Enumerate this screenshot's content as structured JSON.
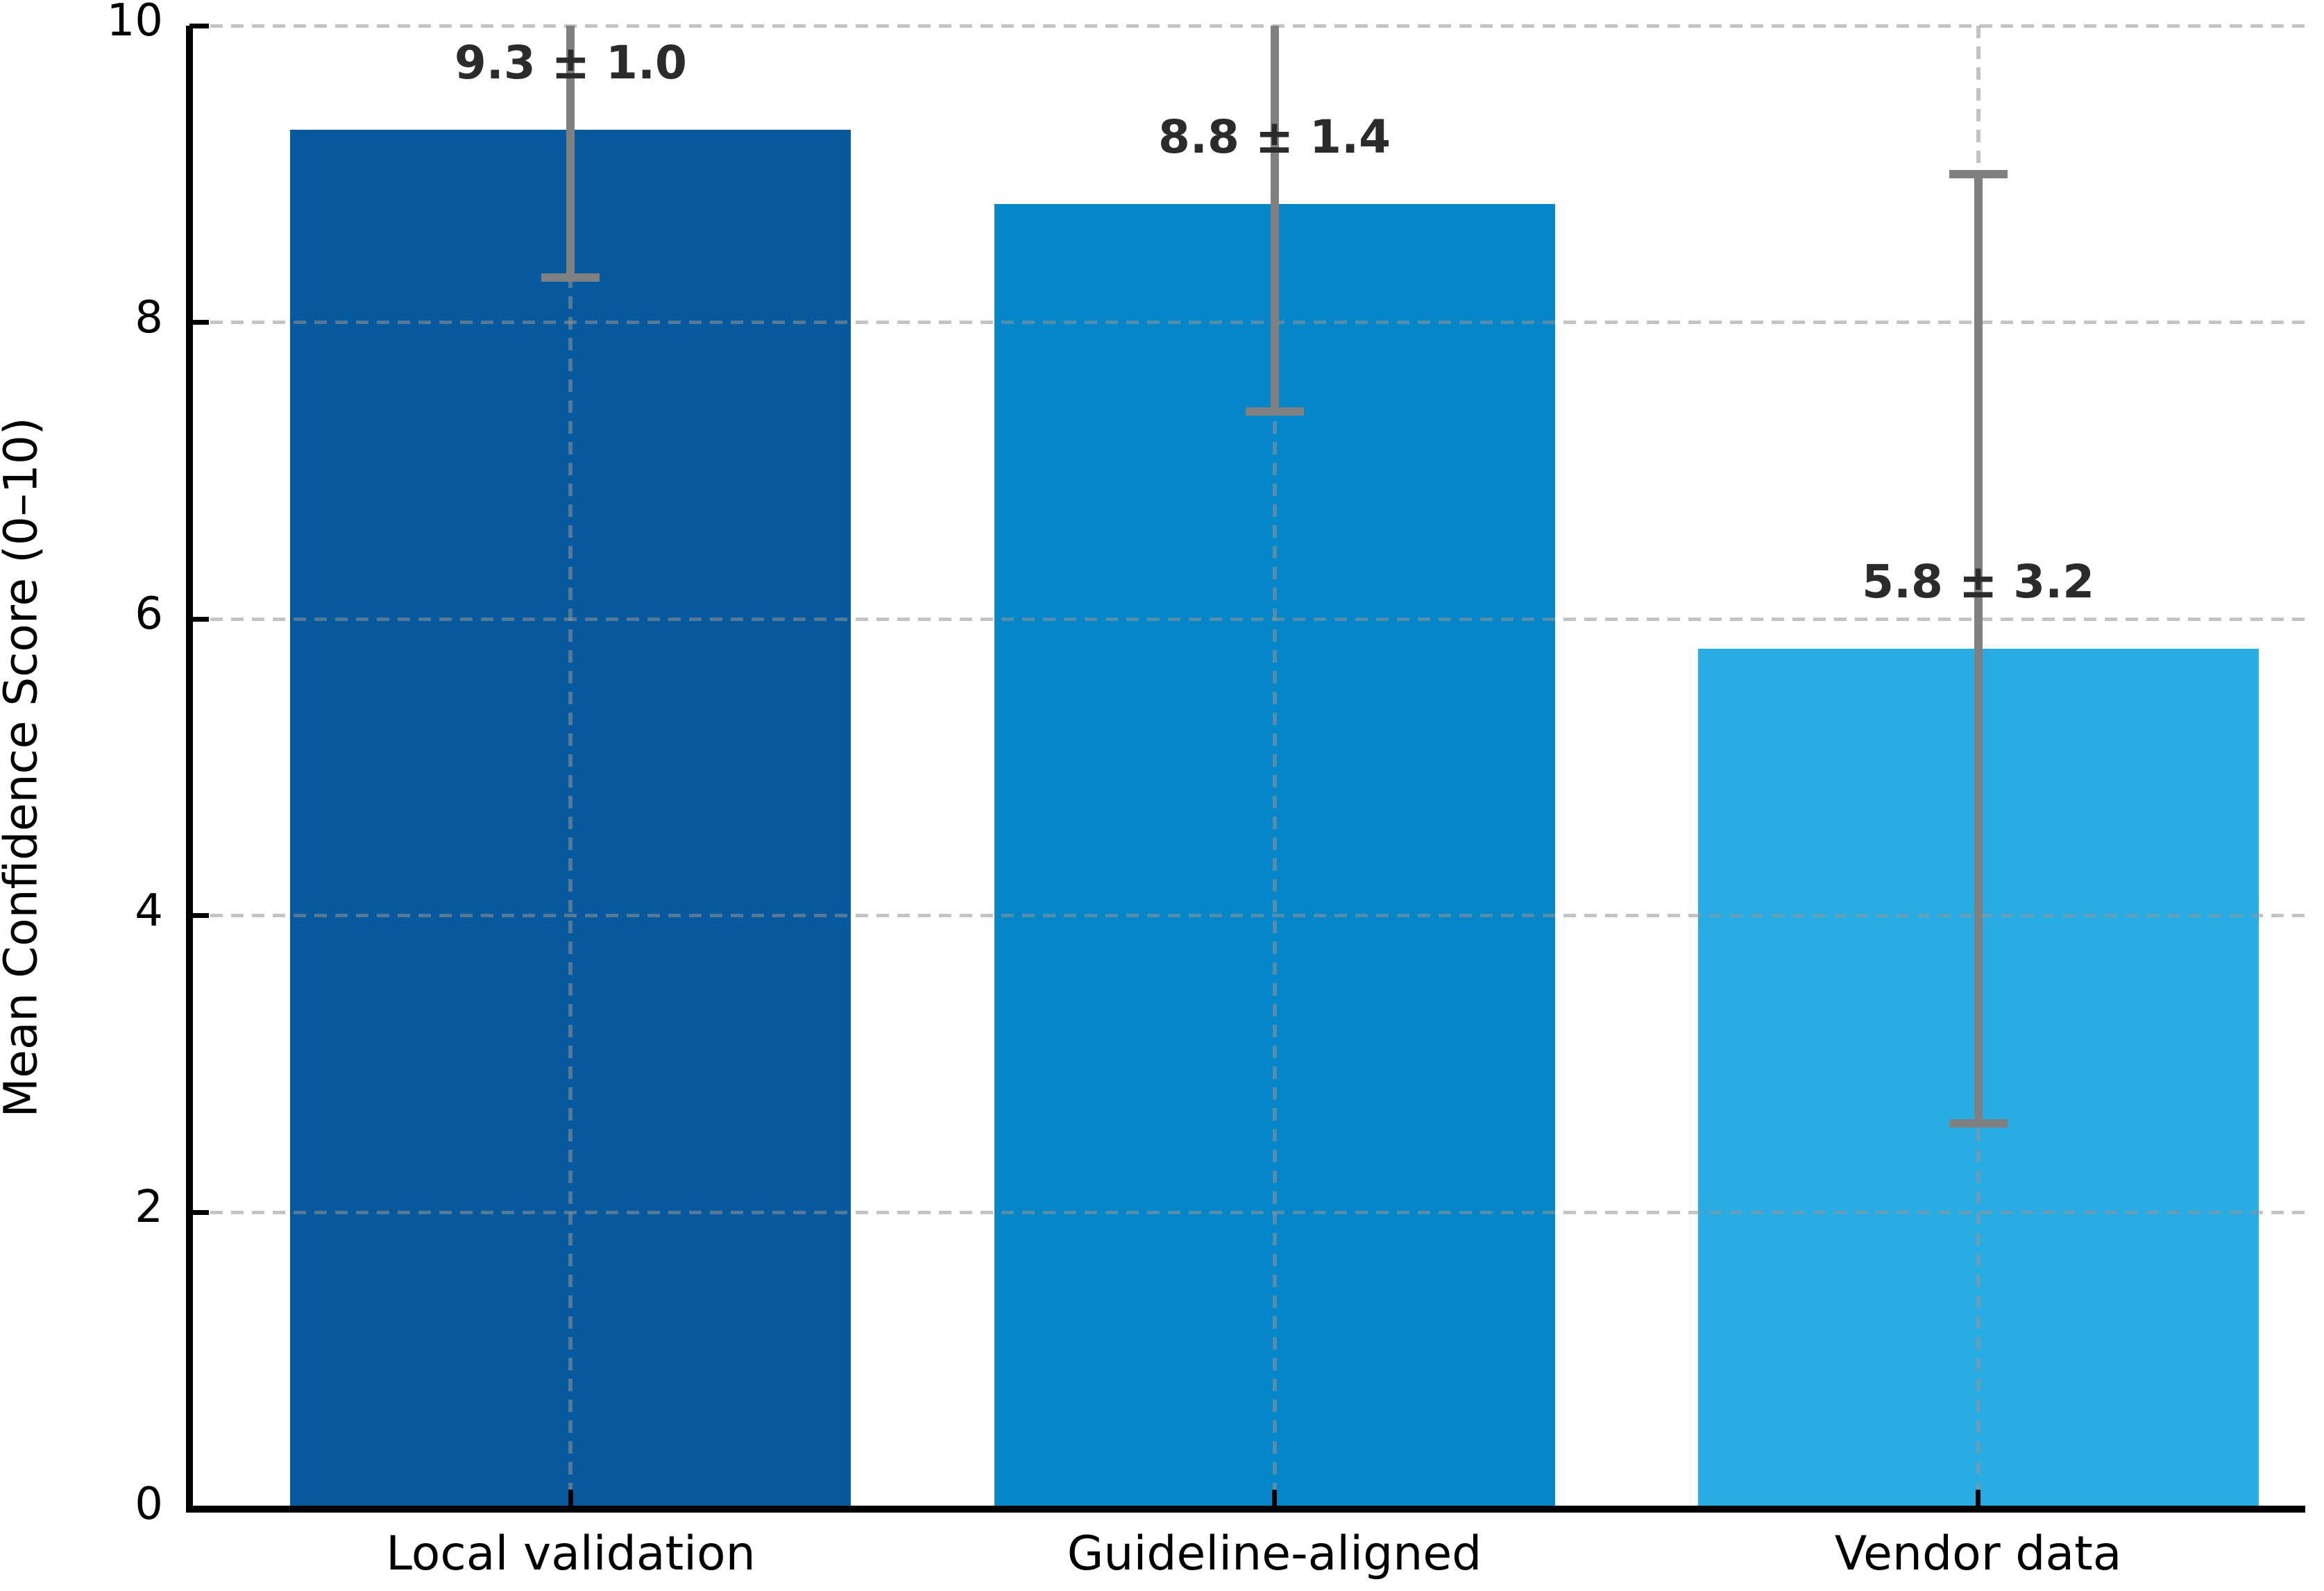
{
  "chart_data": {
    "type": "bar",
    "categories": [
      "Local validation",
      "Guideline-aligned",
      "Vendor data"
    ],
    "values": [
      9.3,
      8.8,
      5.8
    ],
    "errors": [
      1.0,
      1.4,
      3.2
    ],
    "bar_labels": [
      "9.3 ± 1.0",
      "8.8 ± 1.4",
      "5.8 ± 3.2"
    ],
    "bar_colors": [
      "#06599d",
      "#0486c8",
      "#27ade4"
    ],
    "error_bar_color": "#808080",
    "grid_color": "#949494",
    "axis_color": "#000000",
    "value_label_color": "#2b2b2b",
    "title": "",
    "xlabel": "",
    "ylabel": "Mean Confidence Score (0–10)",
    "ylim": [
      0,
      10
    ],
    "yticks": [
      0,
      2,
      4,
      6,
      8,
      10
    ],
    "ytick_labels": [
      "0",
      "2",
      "4",
      "6",
      "8",
      "10"
    ],
    "grid": "dashed, horizontal at yticks and vertical at bar centers, drawn above bars",
    "error_bars_clipped_at": 10,
    "legend": "none"
  }
}
